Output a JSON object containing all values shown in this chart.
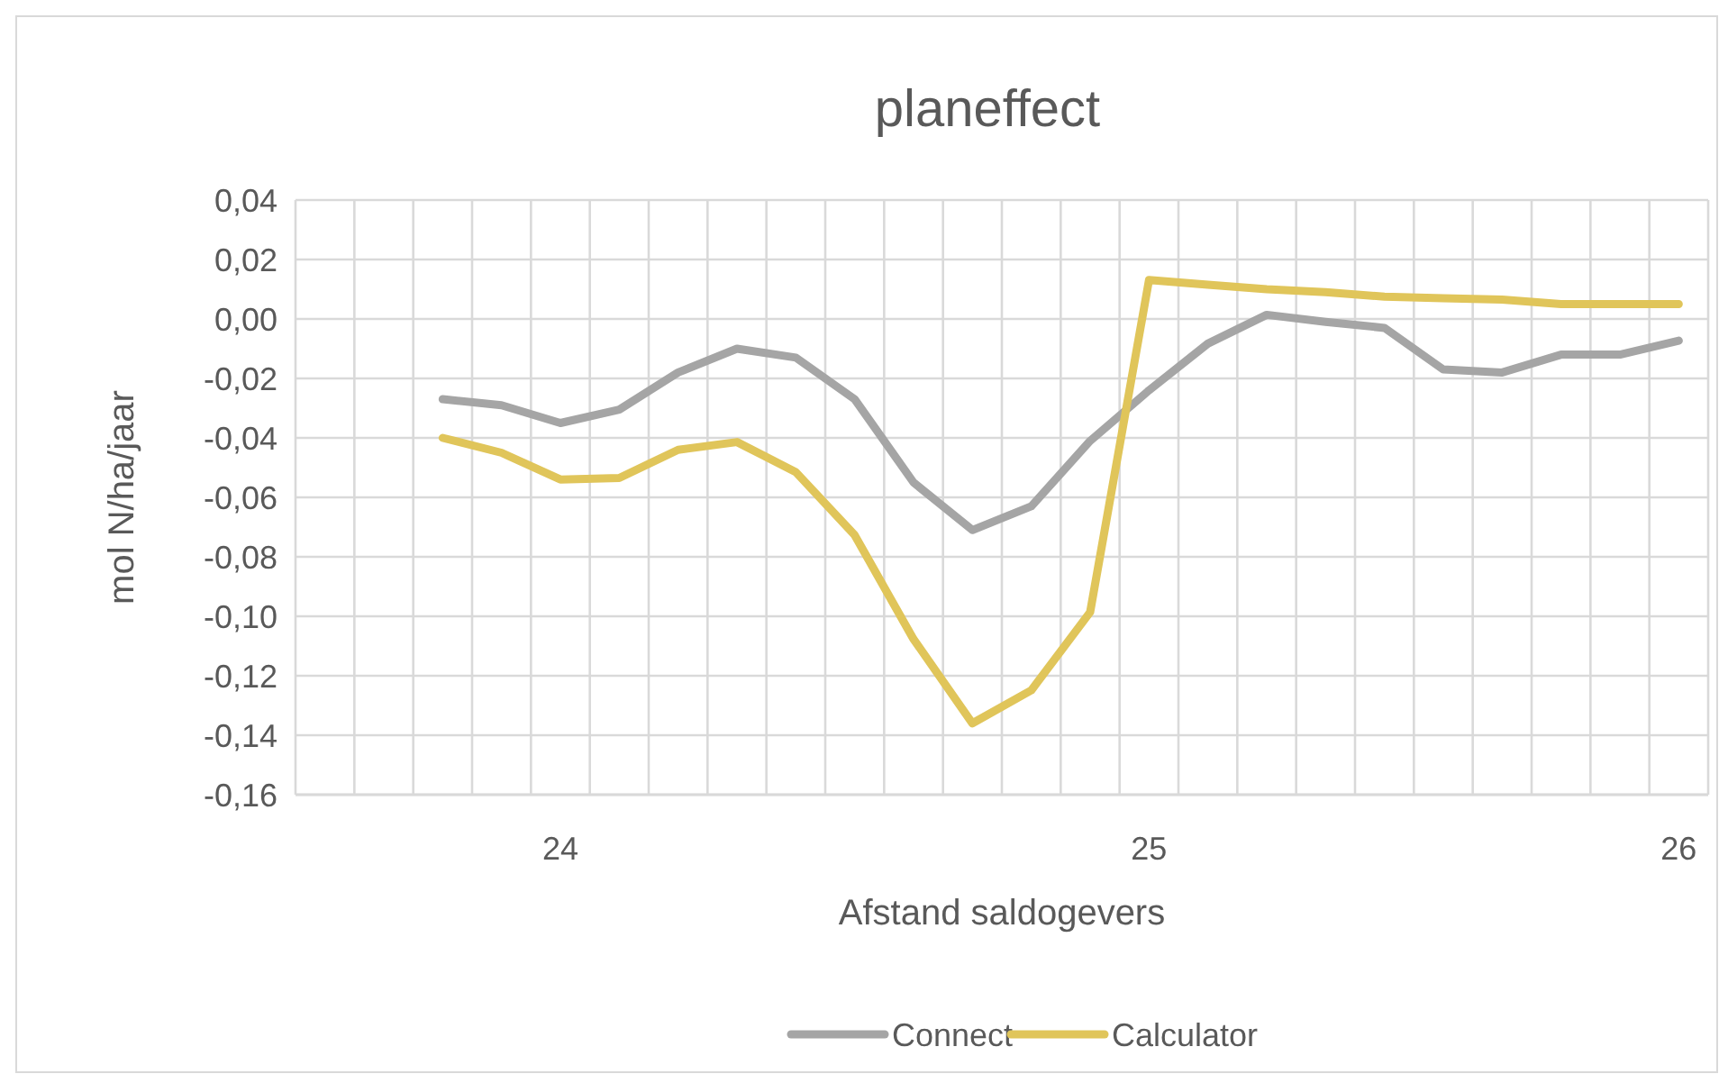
{
  "chart_data": {
    "type": "line",
    "title": "planeffect",
    "xlabel": "Afstand saldogevers",
    "ylabel": "mol N/ha/jaar",
    "categories": [
      null,
      null,
      null,
      null,
      "24",
      null,
      null,
      null,
      null,
      null,
      null,
      null,
      null,
      null,
      "25",
      null,
      null,
      null,
      null,
      null,
      null,
      null,
      null,
      "26"
    ],
    "series": [
      {
        "name": "Connect",
        "color": "#a5a5a5",
        "values": [
          null,
          null,
          -0.027,
          -0.029,
          -0.035,
          -0.0305,
          -0.018,
          -0.01,
          -0.013,
          -0.027,
          -0.055,
          -0.071,
          -0.063,
          -0.041,
          -0.024,
          -0.0083,
          0.0014,
          -0.001,
          -0.003,
          -0.017,
          -0.018,
          -0.012,
          -0.012,
          -0.0073
        ]
      },
      {
        "name": "Calculator",
        "color": "#e0c55a",
        "values": [
          null,
          null,
          -0.04,
          -0.045,
          -0.054,
          -0.0535,
          -0.044,
          -0.0414,
          -0.0515,
          -0.0727,
          -0.1077,
          -0.136,
          -0.1249,
          -0.0986,
          0.0131,
          0.0115,
          0.01,
          0.009,
          0.0075,
          0.007,
          0.0065,
          0.005,
          0.005,
          0.005
        ]
      }
    ],
    "ylim": [
      -0.16,
      0.04
    ],
    "yticks": [
      {
        "value": 0.04,
        "label": "0,04"
      },
      {
        "value": 0.02,
        "label": "0,02"
      },
      {
        "value": 0,
        "label": "0,00"
      },
      {
        "value": -0.02,
        "label": "-0,02"
      },
      {
        "value": -0.04,
        "label": "-0,04"
      },
      {
        "value": -0.06,
        "label": "-0,06"
      },
      {
        "value": -0.08,
        "label": "-0,08"
      },
      {
        "value": -0.1,
        "label": "-0,10"
      },
      {
        "value": -0.12,
        "label": "-0,12"
      },
      {
        "value": -0.14,
        "label": "-0,14"
      },
      {
        "value": -0.16,
        "label": "-0,16"
      }
    ],
    "grid": true,
    "legend": "bottom",
    "marker": "none",
    "line_style": "solid"
  }
}
